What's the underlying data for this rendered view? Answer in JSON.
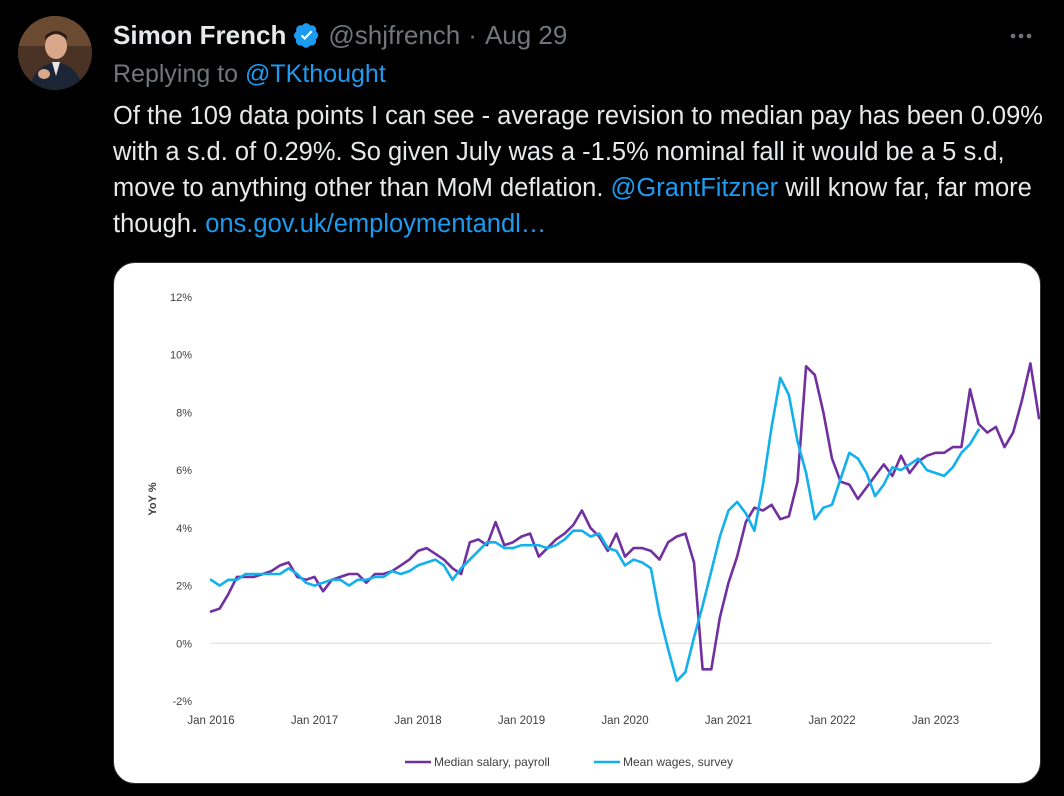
{
  "tweet": {
    "author_name": "Simon French",
    "handle": "@shjfrench",
    "separator": "·",
    "date": "Aug 29",
    "replying_to_prefix": "Replying to",
    "replying_to_handle": "@TKthought",
    "text_part1": "Of the 109 data points I can see - average revision to median pay has been 0.09% with a s.d. of 0.29%. So given July was a -1.5% nominal fall it would be a 5 s.d, move to anything other than MoM deflation.",
    "mention": "@GrantFitzner",
    "text_part2": "will know far, far more though.",
    "link": "ons.gov.uk/employmentandl…",
    "icons": {
      "avatar": "avatar-photo",
      "verified": "verified-badge-icon",
      "more": "more-options-icon"
    },
    "colors": {
      "background": "#000000",
      "text": "#e7e9ea",
      "muted": "#71767b",
      "link": "#1d9bf0"
    }
  },
  "chart_data": {
    "type": "line",
    "title": "",
    "xlabel": "",
    "ylabel": "YoY %",
    "ylim": [
      -2,
      12
    ],
    "yticks": [
      -2,
      0,
      2,
      4,
      6,
      8,
      10,
      12
    ],
    "ytick_labels": [
      "-2%",
      "0%",
      "2%",
      "4%",
      "6%",
      "8%",
      "10%",
      "12%"
    ],
    "xtick_labels": [
      "Jan 2016",
      "Jan 2017",
      "Jan 2018",
      "Jan 2019",
      "Jan 2020",
      "Jan 2021",
      "Jan 2022",
      "Jan 2023"
    ],
    "x_start": "Jan 2016",
    "x_months_per_tick": 12,
    "legend_position": "bottom-center",
    "grid": false,
    "series": [
      {
        "name": "Median salary, payroll",
        "color": "#7030a0",
        "values": [
          1.1,
          1.2,
          1.7,
          2.3,
          2.3,
          2.3,
          2.4,
          2.5,
          2.7,
          2.8,
          2.3,
          2.2,
          2.3,
          1.8,
          2.2,
          2.3,
          2.4,
          2.4,
          2.1,
          2.4,
          2.4,
          2.5,
          2.7,
          2.9,
          3.2,
          3.3,
          3.1,
          2.9,
          2.6,
          2.4,
          3.5,
          3.6,
          3.4,
          4.2,
          3.4,
          3.5,
          3.7,
          3.8,
          3.0,
          3.3,
          3.6,
          3.8,
          4.1,
          4.6,
          4.0,
          3.7,
          3.2,
          3.8,
          3.0,
          3.3,
          3.3,
          3.2,
          2.9,
          3.5,
          3.7,
          3.8,
          2.8,
          -0.9,
          -0.9,
          0.9,
          2.1,
          3.0,
          4.2,
          4.7,
          4.6,
          4.8,
          4.3,
          4.4,
          5.6,
          9.6,
          9.3,
          8.0,
          6.4,
          5.6,
          5.5,
          5.0,
          5.4,
          5.8,
          6.2,
          5.8,
          6.5,
          5.9,
          6.3,
          6.5,
          6.6,
          6.6,
          6.8,
          6.8,
          8.8,
          7.6,
          7.3,
          7.5,
          6.8,
          7.3,
          8.4,
          9.7,
          7.8
        ]
      },
      {
        "name": "Mean wages, survey",
        "color": "#12b0ec",
        "values": [
          2.2,
          2.0,
          2.2,
          2.2,
          2.4,
          2.4,
          2.4,
          2.4,
          2.4,
          2.6,
          2.4,
          2.1,
          2.0,
          2.1,
          2.2,
          2.2,
          2.0,
          2.2,
          2.2,
          2.3,
          2.3,
          2.5,
          2.4,
          2.5,
          2.7,
          2.8,
          2.9,
          2.7,
          2.2,
          2.6,
          2.9,
          3.2,
          3.5,
          3.5,
          3.3,
          3.3,
          3.4,
          3.4,
          3.4,
          3.3,
          3.4,
          3.6,
          3.9,
          3.9,
          3.7,
          3.8,
          3.3,
          3.2,
          2.7,
          2.9,
          2.8,
          2.6,
          1.0,
          -0.2,
          -1.3,
          -1.0,
          0.2,
          1.3,
          2.5,
          3.7,
          4.6,
          4.9,
          4.5,
          3.9,
          5.5,
          7.5,
          9.2,
          8.6,
          7.0,
          5.9,
          4.3,
          4.7,
          4.8,
          5.7,
          6.6,
          6.4,
          5.9,
          5.1,
          5.5,
          6.1,
          6.0,
          6.2,
          6.4,
          6.0,
          5.9,
          5.8,
          6.1,
          6.6,
          6.9,
          7.4
        ]
      }
    ]
  }
}
